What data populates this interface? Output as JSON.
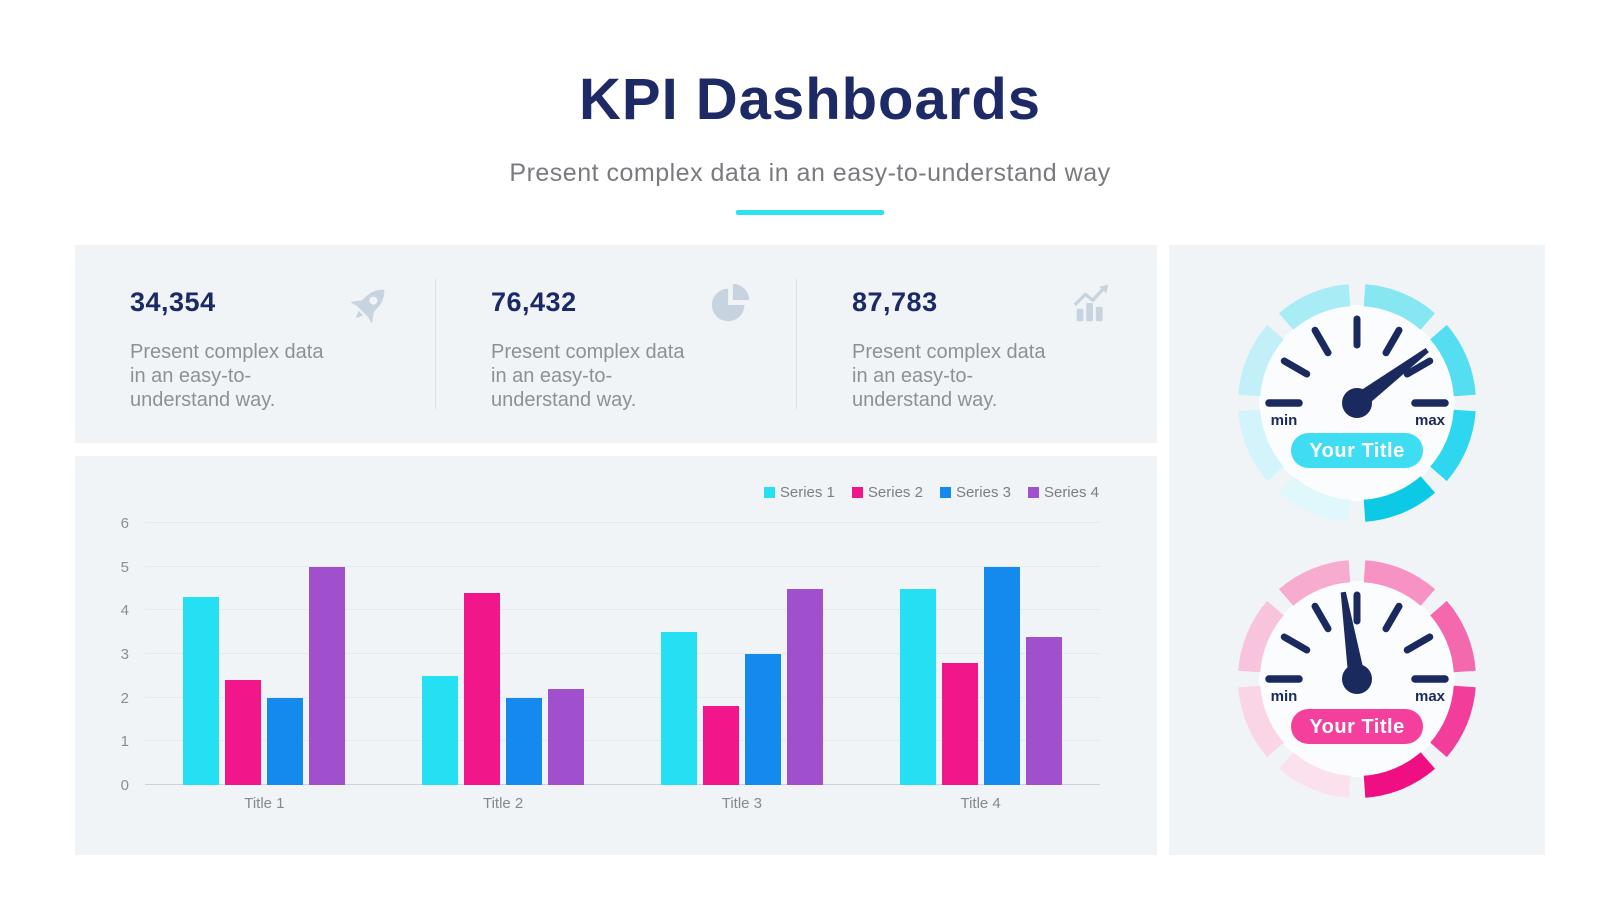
{
  "header": {
    "title": "KPI Dashboards",
    "subtitle": "Present complex data in an easy-to-understand way",
    "accent_color": "#2EE0F2"
  },
  "theme": {
    "navy": "#1D2A66",
    "text_gray": "#8E9095",
    "panel_bg": "#F0F4F7"
  },
  "stats": [
    {
      "value": "34,354",
      "description": "Present complex data in an easy-to-understand way.",
      "icon": "rocket-icon"
    },
    {
      "value": "76,432",
      "description": "Present complex data in an easy-to-understand way.",
      "icon": "pie-chart-icon"
    },
    {
      "value": "87,783",
      "description": "Present complex data in an easy-to-understand way.",
      "icon": "growth-chart-icon"
    }
  ],
  "chart_data": {
    "type": "bar",
    "title": "",
    "xlabel": "",
    "ylabel": "",
    "categories": [
      "Title 1",
      "Title 2",
      "Title 3",
      "Title 4"
    ],
    "series": [
      {
        "name": "Series 1",
        "color": "#25DFF2",
        "values": [
          4.3,
          2.5,
          3.5,
          4.5
        ]
      },
      {
        "name": "Series 2",
        "color": "#F1168A",
        "values": [
          2.4,
          4.4,
          1.8,
          2.8
        ]
      },
      {
        "name": "Series 3",
        "color": "#1489EE",
        "values": [
          2.0,
          2.0,
          3.0,
          5.0
        ]
      },
      {
        "name": "Series 4",
        "color": "#A050CC",
        "values": [
          5.0,
          2.2,
          4.5,
          3.4
        ]
      }
    ],
    "ylim": [
      0,
      6
    ],
    "yticks": [
      0,
      1,
      2,
      3,
      4,
      5,
      6
    ],
    "grid": true,
    "legend_position": "top-right"
  },
  "gauges": [
    {
      "title": "Your Title",
      "min_label": "min",
      "max_label": "max",
      "accent": "#3EDDF2",
      "needle_color": "#1B2A5E",
      "needle_angle_deg": 37,
      "ring_colors": [
        "#86E7F3",
        "#55DEF2",
        "#2FD6F0",
        "#0CC9E6",
        "#E0F8FB",
        "#D2F4FA",
        "#C3F0F8",
        "#A8ECF5"
      ]
    },
    {
      "title": "Your Title",
      "min_label": "min",
      "max_label": "max",
      "accent": "#F43F9D",
      "needle_color": "#1B2A5E",
      "needle_angle_deg": 99,
      "ring_colors": [
        "#F693C4",
        "#F468AE",
        "#F23E9A",
        "#EF0F83",
        "#FBE1ED",
        "#FAD5E6",
        "#F8C3DC",
        "#F7ABCF"
      ]
    }
  ]
}
